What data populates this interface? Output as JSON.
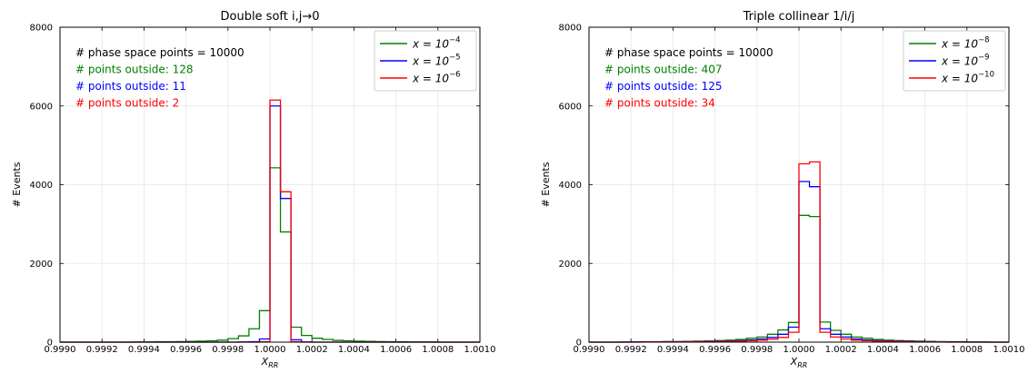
{
  "chart_data": [
    {
      "type": "line",
      "title": "Double soft i,j→0",
      "xlabel": "X_RR",
      "ylabel": "# Events",
      "xlim": [
        0.999,
        1.001
      ],
      "ylim": [
        0,
        8000
      ],
      "grid": true,
      "legend_placement": "top-right",
      "x_ticks": [
        "0.9990",
        "0.9992",
        "0.9994",
        "0.9996",
        "0.9998",
        "1.0000",
        "1.0002",
        "1.0004",
        "1.0006",
        "1.0008",
        "1.0010"
      ],
      "y_ticks": [
        "0",
        "2000",
        "4000",
        "6000",
        "8000"
      ],
      "annotations": [
        {
          "text": "# phase space points = 10000",
          "color": "#000000"
        },
        {
          "text": "# points outside: 128",
          "color": "#008000"
        },
        {
          "text": "# points outside: 11",
          "color": "#0000ff"
        },
        {
          "text": "# points outside: 2",
          "color": "#ff0000"
        }
      ],
      "bin_edges": [
        0.999,
        0.99905,
        0.9991,
        0.99915,
        0.9992,
        0.99925,
        0.9993,
        0.99935,
        0.9994,
        0.99945,
        0.9995,
        0.99955,
        0.9996,
        0.99965,
        0.9997,
        0.99975,
        0.9998,
        0.99985,
        0.9999,
        0.99995,
        1.0,
        1.00005,
        1.0001,
        1.00015,
        1.0002,
        1.00025,
        1.0003,
        1.00035,
        1.0004,
        1.00045,
        1.0005,
        1.00055,
        1.0006,
        1.00065,
        1.0007,
        1.00075,
        1.0008,
        1.00085,
        1.0009,
        1.00095,
        1.001
      ],
      "series": [
        {
          "name": "x = 10^-4",
          "legend_base": "x = 10",
          "legend_exp": "−4",
          "color": "#008000",
          "values": [
            0,
            0,
            0,
            0,
            0,
            0,
            0,
            5,
            5,
            10,
            10,
            15,
            20,
            25,
            35,
            50,
            90,
            160,
            340,
            800,
            4430,
            2800,
            380,
            170,
            100,
            70,
            45,
            35,
            25,
            20,
            15,
            10,
            10,
            5,
            5,
            5,
            0,
            0,
            0,
            0
          ]
        },
        {
          "name": "x = 10^-5",
          "legend_base": "x = 10",
          "legend_exp": "−5",
          "color": "#0000ff",
          "values": [
            0,
            0,
            0,
            0,
            0,
            0,
            0,
            0,
            0,
            0,
            0,
            0,
            0,
            0,
            0,
            0,
            0,
            5,
            10,
            80,
            6000,
            3650,
            60,
            5,
            0,
            0,
            0,
            0,
            0,
            0,
            0,
            0,
            0,
            0,
            0,
            0,
            0,
            0,
            0,
            0
          ]
        },
        {
          "name": "x = 10^-6",
          "legend_base": "x = 10",
          "legend_exp": "−6",
          "color": "#ff0000",
          "values": [
            0,
            0,
            0,
            0,
            0,
            0,
            0,
            0,
            0,
            0,
            0,
            0,
            0,
            0,
            0,
            0,
            0,
            0,
            0,
            10,
            6150,
            3820,
            10,
            0,
            0,
            0,
            0,
            0,
            0,
            0,
            0,
            0,
            0,
            0,
            0,
            0,
            0,
            0,
            0,
            0
          ]
        }
      ]
    },
    {
      "type": "line",
      "title": "Triple collinear 1/i/j",
      "xlabel": "X_RR",
      "ylabel": "# Events",
      "xlim": [
        0.999,
        1.001
      ],
      "ylim": [
        0,
        8000
      ],
      "grid": true,
      "legend_placement": "top-right",
      "x_ticks": [
        "0.9990",
        "0.9992",
        "0.9994",
        "0.9996",
        "0.9998",
        "1.0000",
        "1.0002",
        "1.0004",
        "1.0006",
        "1.0008",
        "1.0010"
      ],
      "y_ticks": [
        "0",
        "2000",
        "4000",
        "6000",
        "8000"
      ],
      "annotations": [
        {
          "text": "# phase space points = 10000",
          "color": "#000000"
        },
        {
          "text": "# points outside: 407",
          "color": "#008000"
        },
        {
          "text": "# points outside: 125",
          "color": "#0000ff"
        },
        {
          "text": "# points outside: 34",
          "color": "#ff0000"
        }
      ],
      "bin_edges": [
        0.999,
        0.99905,
        0.9991,
        0.99915,
        0.9992,
        0.99925,
        0.9993,
        0.99935,
        0.9994,
        0.99945,
        0.9995,
        0.99955,
        0.9996,
        0.99965,
        0.9997,
        0.99975,
        0.9998,
        0.99985,
        0.9999,
        0.99995,
        1.0,
        1.00005,
        1.0001,
        1.00015,
        1.0002,
        1.00025,
        1.0003,
        1.00035,
        1.0004,
        1.00045,
        1.0005,
        1.00055,
        1.0006,
        1.00065,
        1.0007,
        1.00075,
        1.0008,
        1.00085,
        1.0009,
        1.00095,
        1.001
      ],
      "series": [
        {
          "name": "x = 10^-8",
          "legend_base": "x = 10",
          "legend_exp": "−8",
          "color": "#008000",
          "values": [
            0,
            0,
            0,
            5,
            5,
            10,
            10,
            15,
            15,
            20,
            25,
            30,
            40,
            50,
            70,
            100,
            130,
            200,
            310,
            500,
            3220,
            3190,
            510,
            300,
            200,
            130,
            100,
            70,
            50,
            40,
            30,
            25,
            20,
            15,
            10,
            10,
            5,
            5,
            0,
            0
          ]
        },
        {
          "name": "x = 10^-9",
          "legend_base": "x = 10",
          "legend_exp": "−9",
          "color": "#0000ff",
          "values": [
            0,
            0,
            0,
            0,
            5,
            5,
            5,
            10,
            10,
            15,
            15,
            20,
            25,
            30,
            40,
            55,
            80,
            120,
            200,
            380,
            4080,
            3950,
            340,
            200,
            130,
            80,
            55,
            40,
            30,
            25,
            20,
            15,
            10,
            5,
            5,
            5,
            0,
            0,
            0,
            0
          ]
        },
        {
          "name": "x = 10^-10",
          "legend_base": "x = 10",
          "legend_exp": "−10",
          "color": "#ff0000",
          "values": [
            0,
            0,
            0,
            0,
            0,
            5,
            5,
            5,
            5,
            10,
            10,
            15,
            15,
            20,
            25,
            35,
            50,
            75,
            120,
            250,
            4530,
            4580,
            250,
            130,
            80,
            50,
            35,
            25,
            20,
            15,
            10,
            5,
            5,
            5,
            0,
            0,
            0,
            0,
            0,
            0
          ]
        }
      ]
    }
  ]
}
